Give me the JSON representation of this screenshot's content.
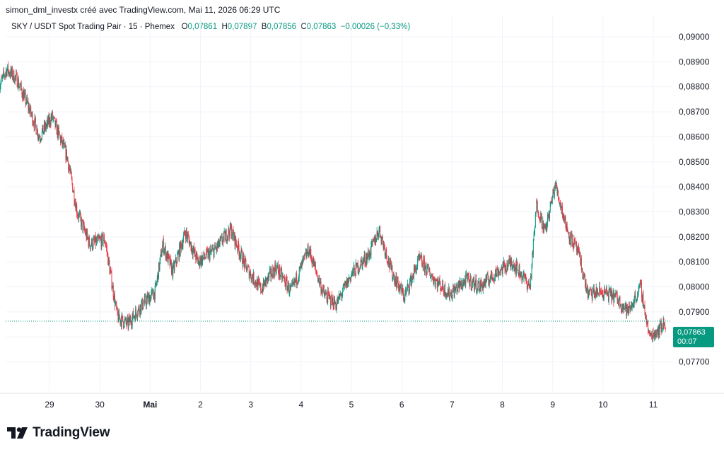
{
  "header": {
    "attribution": "simon_dml_investx créé avec TradingView.com, Mai 11, 2026 06:29 UTC"
  },
  "legend": {
    "symbol": "SKY / USDT Spot Trading Pair · 15 · Phemex",
    "o_label": "O",
    "o_value": "0,07861",
    "h_label": "H",
    "h_value": "0,07897",
    "b_label": "B",
    "b_value": "0,07856",
    "c_label": "C",
    "c_value": "0,07863",
    "change": "−0,00026 (−0,33%)"
  },
  "price_tag": {
    "price": "0,07863",
    "countdown": "00:07"
  },
  "logo": {
    "text": "TradingView"
  },
  "colors": {
    "up": "#089981",
    "down": "#f23645",
    "grid": "#f0f3fa",
    "axis_text": "#131722",
    "last_price_line": "#089981"
  },
  "chart_data": {
    "type": "candlestick",
    "yticks": [
      "0,09000",
      "0,08900",
      "0,08800",
      "0,08700",
      "0,08600",
      "0,08500",
      "0,08400",
      "0,08300",
      "0,08200",
      "0,08100",
      "0,08000",
      "0,07900",
      "0,07800",
      "0,07700"
    ],
    "ylim": [
      0.0765,
      0.0905
    ],
    "xticks": [
      "29",
      "30",
      "Mai",
      "2",
      "3",
      "4",
      "5",
      "6",
      "7",
      "8",
      "9",
      "10",
      "11"
    ],
    "x_tick_values": [
      1,
      2,
      3,
      4,
      5,
      6,
      7,
      8,
      9,
      10,
      11,
      12,
      13
    ],
    "xlim": [
      -0.0,
      13.99
    ],
    "last_price": 0.07863,
    "price_path": [
      [
        0.0,
        0.088
      ],
      [
        0.15,
        0.0887
      ],
      [
        0.35,
        0.0883
      ],
      [
        0.6,
        0.0871
      ],
      [
        0.8,
        0.086
      ],
      [
        1.05,
        0.0868
      ],
      [
        1.35,
        0.0852
      ],
      [
        1.55,
        0.083
      ],
      [
        1.8,
        0.0817
      ],
      [
        2.1,
        0.0819
      ],
      [
        2.35,
        0.0788
      ],
      [
        2.55,
        0.0785
      ],
      [
        2.8,
        0.0792
      ],
      [
        3.1,
        0.0798
      ],
      [
        3.25,
        0.0817
      ],
      [
        3.45,
        0.0806
      ],
      [
        3.7,
        0.0822
      ],
      [
        3.95,
        0.081
      ],
      [
        4.3,
        0.0815
      ],
      [
        4.6,
        0.0823
      ],
      [
        4.9,
        0.0808
      ],
      [
        5.2,
        0.0799
      ],
      [
        5.5,
        0.0808
      ],
      [
        5.8,
        0.0798
      ],
      [
        6.15,
        0.0815
      ],
      [
        6.45,
        0.0797
      ],
      [
        6.7,
        0.0793
      ],
      [
        7.0,
        0.0805
      ],
      [
        7.35,
        0.0813
      ],
      [
        7.55,
        0.0823
      ],
      [
        7.8,
        0.0806
      ],
      [
        8.05,
        0.0796
      ],
      [
        8.35,
        0.0811
      ],
      [
        8.65,
        0.0803
      ],
      [
        8.95,
        0.0797
      ],
      [
        9.3,
        0.0803
      ],
      [
        9.55,
        0.08
      ],
      [
        9.9,
        0.0806
      ],
      [
        10.2,
        0.081
      ],
      [
        10.55,
        0.08
      ],
      [
        10.68,
        0.0833
      ],
      [
        10.85,
        0.0822
      ],
      [
        11.05,
        0.0841
      ],
      [
        11.3,
        0.0822
      ],
      [
        11.5,
        0.0814
      ],
      [
        11.7,
        0.0797
      ],
      [
        11.95,
        0.0798
      ],
      [
        12.25,
        0.0796
      ],
      [
        12.5,
        0.079
      ],
      [
        12.75,
        0.08
      ],
      [
        12.92,
        0.078
      ],
      [
        13.1,
        0.0783
      ],
      [
        13.25,
        0.0786
      ]
    ]
  }
}
